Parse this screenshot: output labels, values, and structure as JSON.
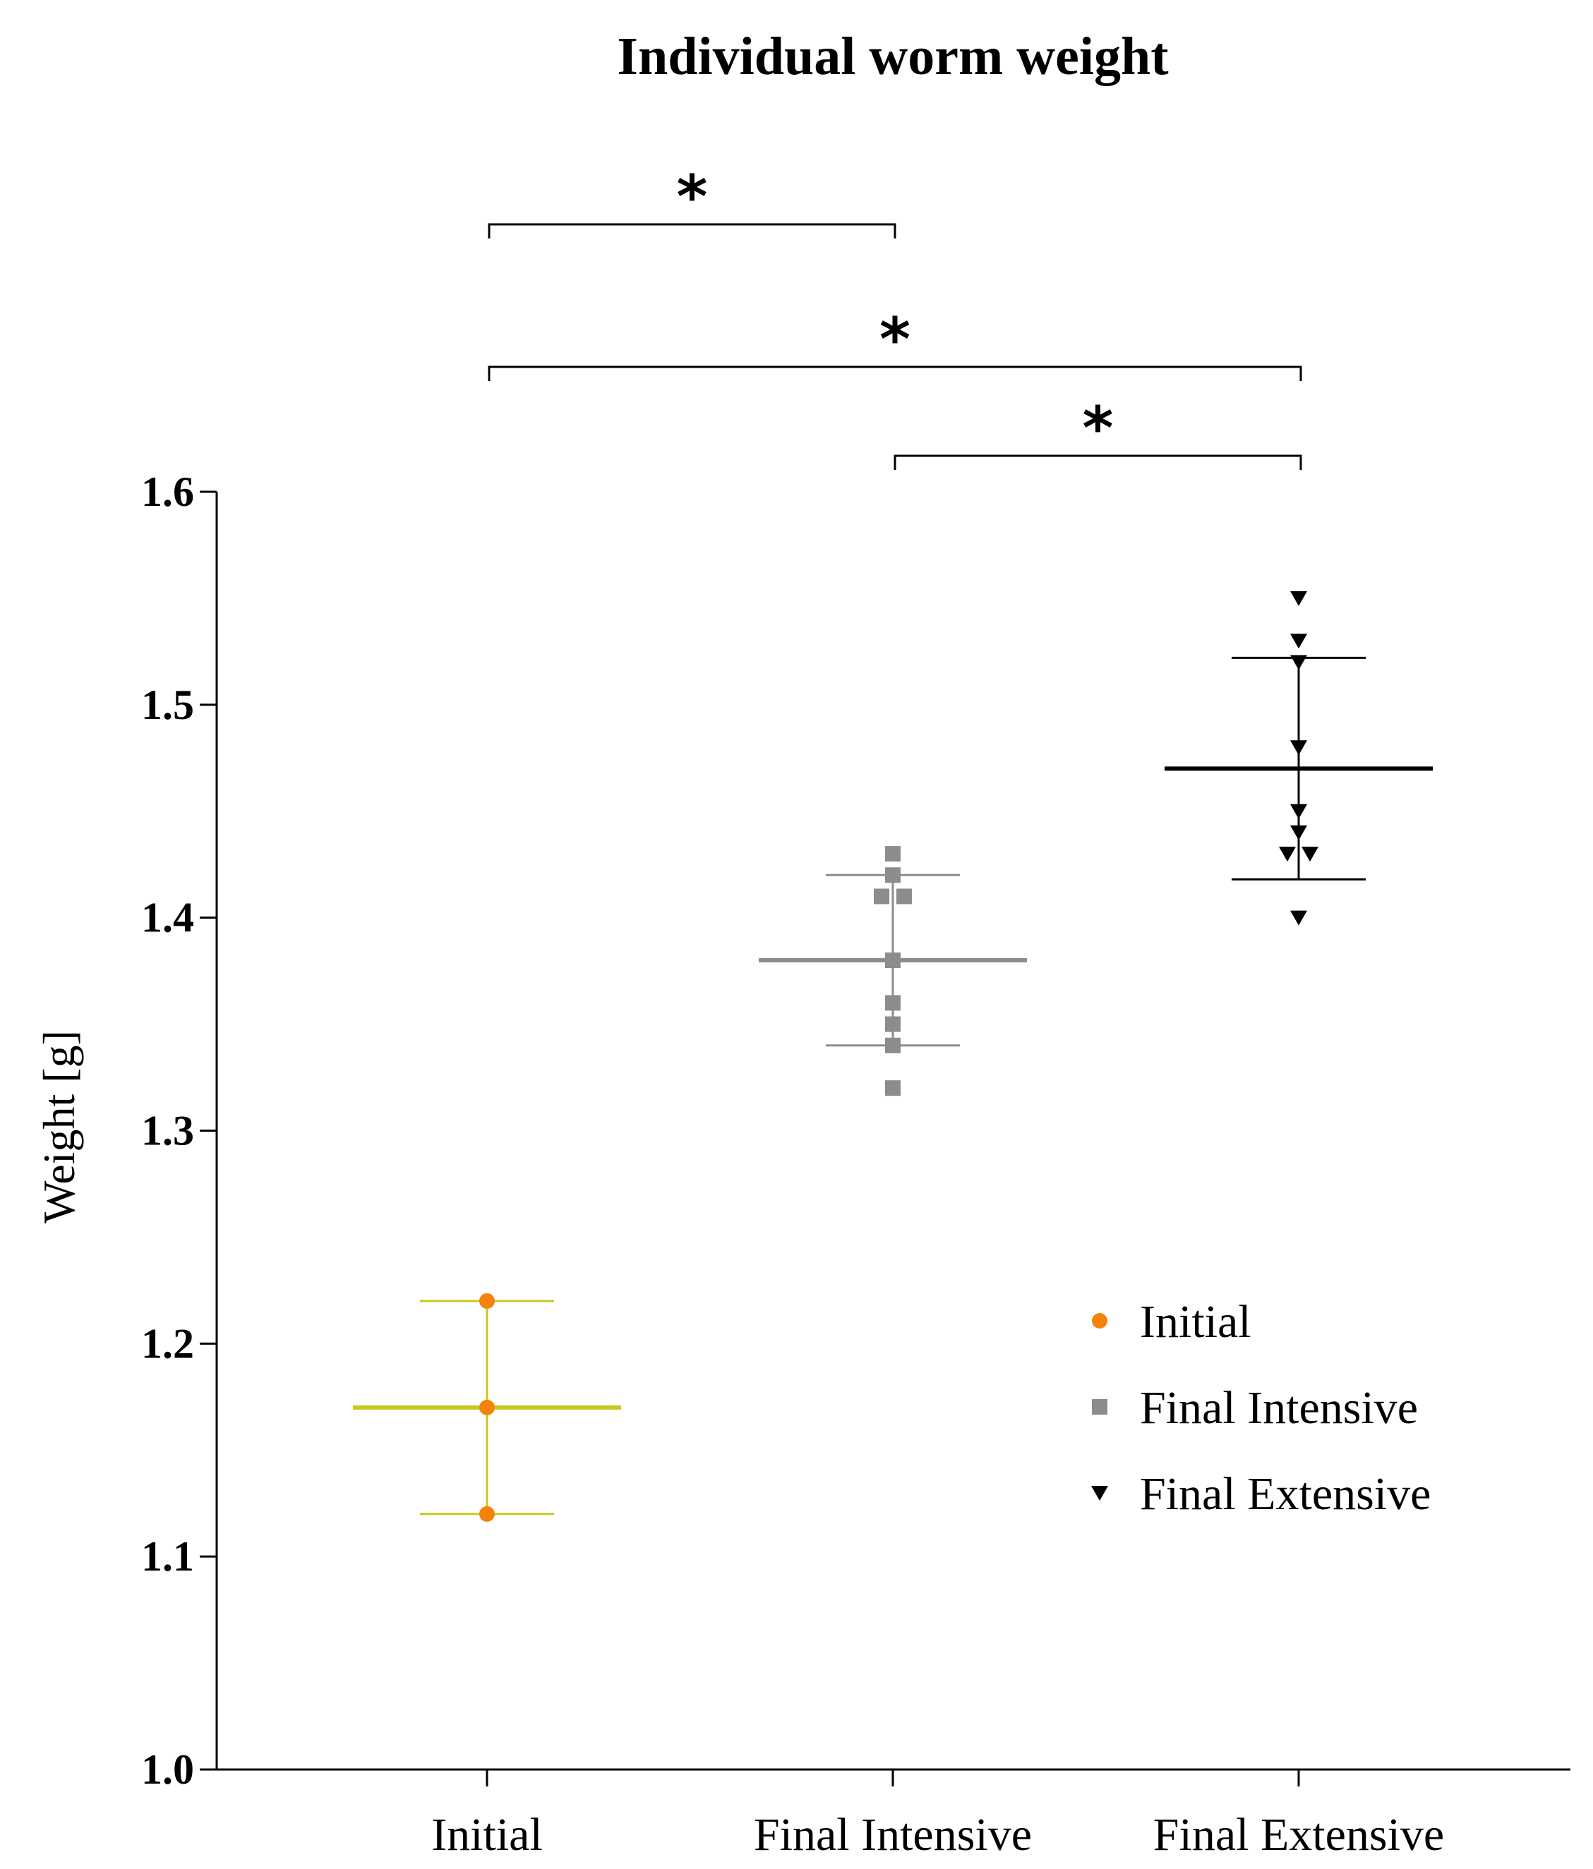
{
  "chart_data": {
    "type": "scatter",
    "title": "Individual worm weight",
    "xlabel": "",
    "ylabel": "Weight [g]",
    "ylim": [
      1.0,
      1.6
    ],
    "yticks": [
      "1.0",
      "1.1",
      "1.2",
      "1.3",
      "1.4",
      "1.5",
      "1.6"
    ],
    "ytick_values": [
      1.0,
      1.1,
      1.2,
      1.3,
      1.4,
      1.5,
      1.6
    ],
    "categories": [
      "Initial",
      "Final Intensive",
      "Final Extensive"
    ],
    "series": [
      {
        "name": "Initial",
        "category": "Initial",
        "marker": "circle",
        "color": "#f5820a",
        "bar_color": "#c8c81e",
        "values": [
          1.22,
          1.17,
          1.12
        ],
        "mean": 1.17,
        "sd": 0.05
      },
      {
        "name": "Final Intensive",
        "category": "Final Intensive",
        "marker": "square",
        "color": "#8c8c8c",
        "bar_color": "#8c8c8c",
        "values": [
          1.43,
          1.42,
          1.41,
          1.41,
          1.38,
          1.36,
          1.35,
          1.34,
          1.32
        ],
        "mean": 1.38,
        "sd": 0.04
      },
      {
        "name": "Final Extensive",
        "category": "Final Extensive",
        "marker": "triangle-down",
        "color": "#000000",
        "bar_color": "#000000",
        "values": [
          1.55,
          1.53,
          1.52,
          1.48,
          1.45,
          1.44,
          1.43,
          1.43,
          1.4
        ],
        "mean": 1.47,
        "sd": 0.052
      }
    ],
    "significance": [
      {
        "from": "Initial",
        "to": "Final Intensive",
        "label": "*"
      },
      {
        "from": "Initial",
        "to": "Final Extensive",
        "label": "*"
      },
      {
        "from": "Final Intensive",
        "to": "Final Extensive",
        "label": "*"
      }
    ],
    "legend": {
      "placement": "right",
      "entries": [
        "Initial",
        "Final Intensive",
        "Final Extensive"
      ]
    }
  }
}
